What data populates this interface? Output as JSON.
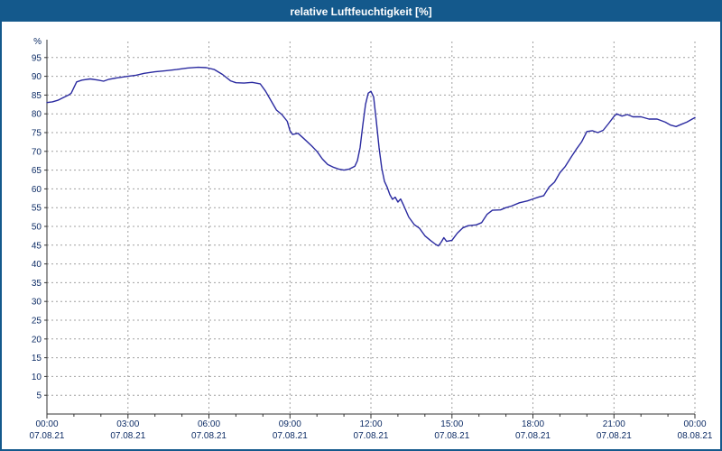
{
  "window": {
    "title": "relative Luftfeuchtigkeit [%]"
  },
  "colors": {
    "titlebar": "#14598C",
    "border": "#14598C",
    "line": "#2A2AA0",
    "grid": "#A0A0A0",
    "axis": "#333333",
    "tick_text": "#0E2D66",
    "background": "#FFFFFF"
  },
  "chart_data": {
    "type": "line",
    "title": "relative Luftfeuchtigkeit [%]",
    "xlabel": "",
    "ylabel": "%",
    "ylim": [
      0,
      100
    ],
    "xlim": [
      0,
      24
    ],
    "grid": true,
    "legend": "none",
    "yticks": [
      5,
      10,
      15,
      20,
      25,
      30,
      35,
      40,
      45,
      50,
      55,
      60,
      65,
      70,
      75,
      80,
      85,
      90,
      95
    ],
    "xtick_interval_hours": 3,
    "xticks": [
      {
        "time": "00:00",
        "date": "07.08.21"
      },
      {
        "time": "03:00",
        "date": "07.08.21"
      },
      {
        "time": "06:00",
        "date": "07.08.21"
      },
      {
        "time": "09:00",
        "date": "07.08.21"
      },
      {
        "time": "12:00",
        "date": "07.08.21"
      },
      {
        "time": "15:00",
        "date": "07.08.21"
      },
      {
        "time": "18:00",
        "date": "07.08.21"
      },
      {
        "time": "21:00",
        "date": "07.08.21"
      },
      {
        "time": "00:00",
        "date": "08.08.21"
      }
    ],
    "series": [
      {
        "name": "relative Luftfeuchtigkeit",
        "unit": "%",
        "color": "#2A2AA0",
        "points": [
          [
            0.0,
            83
          ],
          [
            0.2,
            83.2
          ],
          [
            0.4,
            83.6
          ],
          [
            0.6,
            84.3
          ],
          [
            0.8,
            85
          ],
          [
            0.9,
            85.5
          ],
          [
            1.0,
            87
          ],
          [
            1.1,
            88.5
          ],
          [
            1.3,
            89
          ],
          [
            1.6,
            89.3
          ],
          [
            1.9,
            89
          ],
          [
            2.1,
            88.7
          ],
          [
            2.3,
            89.2
          ],
          [
            2.6,
            89.6
          ],
          [
            3.0,
            90
          ],
          [
            3.3,
            90.3
          ],
          [
            3.6,
            90.8
          ],
          [
            4.0,
            91.2
          ],
          [
            4.4,
            91.5
          ],
          [
            4.8,
            91.8
          ],
          [
            5.2,
            92.2
          ],
          [
            5.6,
            92.4
          ],
          [
            5.9,
            92.3
          ],
          [
            6.2,
            91.8
          ],
          [
            6.5,
            90.5
          ],
          [
            6.8,
            88.8
          ],
          [
            7.0,
            88.3
          ],
          [
            7.3,
            88.2
          ],
          [
            7.6,
            88.4
          ],
          [
            7.9,
            88
          ],
          [
            8.1,
            86
          ],
          [
            8.3,
            83.5
          ],
          [
            8.5,
            81
          ],
          [
            8.7,
            79.8
          ],
          [
            8.9,
            78
          ],
          [
            9.0,
            75.5
          ],
          [
            9.1,
            74.5
          ],
          [
            9.3,
            74.8
          ],
          [
            9.5,
            73.5
          ],
          [
            9.8,
            71.5
          ],
          [
            10.0,
            70
          ],
          [
            10.2,
            68
          ],
          [
            10.4,
            66.5
          ],
          [
            10.6,
            65.8
          ],
          [
            10.8,
            65.3
          ],
          [
            11.0,
            65
          ],
          [
            11.2,
            65.3
          ],
          [
            11.4,
            66
          ],
          [
            11.5,
            67.5
          ],
          [
            11.6,
            71
          ],
          [
            11.7,
            77
          ],
          [
            11.8,
            82.5
          ],
          [
            11.9,
            85.5
          ],
          [
            12.0,
            86
          ],
          [
            12.1,
            84.5
          ],
          [
            12.2,
            78
          ],
          [
            12.3,
            71
          ],
          [
            12.4,
            65.5
          ],
          [
            12.5,
            62
          ],
          [
            12.6,
            60.5
          ],
          [
            12.7,
            58.5
          ],
          [
            12.8,
            57.2
          ],
          [
            12.9,
            57.8
          ],
          [
            13.0,
            56.5
          ],
          [
            13.1,
            57.3
          ],
          [
            13.2,
            55.8
          ],
          [
            13.4,
            52.5
          ],
          [
            13.6,
            50.5
          ],
          [
            13.8,
            49.5
          ],
          [
            14.0,
            47.5
          ],
          [
            14.2,
            46.3
          ],
          [
            14.4,
            45.2
          ],
          [
            14.5,
            44.8
          ],
          [
            14.6,
            45.8
          ],
          [
            14.7,
            47
          ],
          [
            14.8,
            46
          ],
          [
            15.0,
            46.3
          ],
          [
            15.2,
            48.2
          ],
          [
            15.4,
            49.6
          ],
          [
            15.6,
            50.2
          ],
          [
            15.9,
            50.4
          ],
          [
            16.1,
            51
          ],
          [
            16.3,
            53.2
          ],
          [
            16.5,
            54.3
          ],
          [
            16.8,
            54.4
          ],
          [
            17.0,
            55
          ],
          [
            17.2,
            55.4
          ],
          [
            17.5,
            56.3
          ],
          [
            17.8,
            56.8
          ],
          [
            18.0,
            57.3
          ],
          [
            18.2,
            57.8
          ],
          [
            18.4,
            58.2
          ],
          [
            18.6,
            60.5
          ],
          [
            18.8,
            61.8
          ],
          [
            19.0,
            64.3
          ],
          [
            19.2,
            66
          ],
          [
            19.4,
            68.3
          ],
          [
            19.6,
            70.5
          ],
          [
            19.8,
            72.5
          ],
          [
            20.0,
            75.3
          ],
          [
            20.2,
            75.5
          ],
          [
            20.4,
            75
          ],
          [
            20.6,
            75.6
          ],
          [
            20.8,
            77.4
          ],
          [
            21.0,
            79.3
          ],
          [
            21.1,
            80
          ],
          [
            21.3,
            79.4
          ],
          [
            21.5,
            79.8
          ],
          [
            21.7,
            79.2
          ],
          [
            22.0,
            79.2
          ],
          [
            22.3,
            78.6
          ],
          [
            22.6,
            78.6
          ],
          [
            22.9,
            77.8
          ],
          [
            23.1,
            77
          ],
          [
            23.3,
            76.6
          ],
          [
            23.5,
            77.2
          ],
          [
            23.7,
            77.8
          ],
          [
            23.9,
            78.6
          ],
          [
            24.0,
            79
          ]
        ]
      }
    ]
  }
}
